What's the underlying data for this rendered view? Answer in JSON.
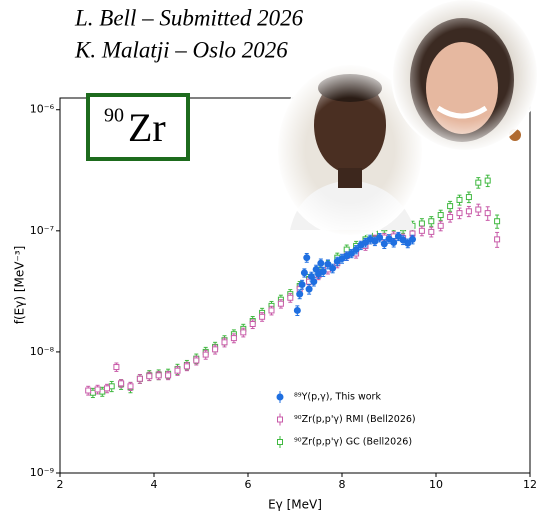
{
  "chart_data": {
    "type": "scatter",
    "header_lines": [
      "L. Bell – Submitted 2026",
      "K. Malatji – Oslo 2026"
    ],
    "label_box": {
      "mass": "90",
      "symbol": "Zr",
      "color": "#1d6b1d"
    },
    "x_label": "Eγ [MeV]",
    "y_label": "f(Eγ) [MeV⁻³]",
    "log_y": true,
    "xlim": [
      2,
      12
    ],
    "xticks": [
      2,
      4,
      6,
      8,
      10,
      12
    ],
    "ylim": [
      1e-09,
      1.25e-06
    ],
    "yticks": [
      {
        "value": 1e-09,
        "label": "10⁻⁹"
      },
      {
        "value": 1e-08,
        "label": "10⁻⁸"
      },
      {
        "value": 1e-07,
        "label": "10⁻⁷"
      },
      {
        "value": 1e-06,
        "label": "10⁻⁶"
      }
    ],
    "series": [
      {
        "name": "⁸⁹Y(p,γ), This work",
        "color": "#1f6fe0",
        "marker": "circle",
        "filled": true,
        "x": [
          7.05,
          7.1,
          7.15,
          7.2,
          7.25,
          7.3,
          7.35,
          7.4,
          7.45,
          7.5,
          7.55,
          7.6,
          7.7,
          7.8,
          7.9,
          8.0,
          8.1,
          8.2,
          8.3,
          8.4,
          8.5,
          8.6,
          8.7,
          8.8,
          8.9,
          9.0,
          9.1,
          9.2,
          9.3,
          9.4,
          9.5
        ],
        "values": [
          2.2e-08,
          3e-08,
          3.6e-08,
          4.5e-08,
          6e-08,
          3.3e-08,
          4.2e-08,
          3.8e-08,
          4.8e-08,
          4.4e-08,
          5.4e-08,
          4.6e-08,
          5.3e-08,
          4.9e-08,
          5.6e-08,
          5.9e-08,
          6.2e-08,
          6.5e-08,
          7e-08,
          7.6e-08,
          8e-08,
          8.5e-08,
          8.2e-08,
          8.8e-08,
          7.8e-08,
          8.6e-08,
          8e-08,
          9e-08,
          8.4e-08,
          7.9e-08,
          8.5e-08
        ],
        "errors": [
          2e-09,
          2.5e-09,
          3e-09,
          3.5e-09,
          5e-09,
          3e-09,
          3.5e-09,
          3e-09,
          4e-09,
          3.5e-09,
          4.5e-09,
          4e-09,
          4.5e-09,
          4e-09,
          4.5e-09,
          5e-09,
          5e-09,
          5e-09,
          5.5e-09,
          6e-09,
          6.5e-09,
          7e-09,
          6.5e-09,
          7e-09,
          6.5e-09,
          7e-09,
          6.5e-09,
          7e-09,
          7e-09,
          6.5e-09,
          7e-09
        ]
      },
      {
        "name": "⁹⁰Zr(p,p'γ) RMI (Bell2026)",
        "color": "#c85aa8",
        "marker": "square",
        "filled": false,
        "x": [
          2.6,
          2.8,
          3.0,
          3.2,
          3.3,
          3.5,
          3.7,
          3.9,
          4.1,
          4.3,
          4.5,
          4.7,
          4.9,
          5.1,
          5.3,
          5.5,
          5.7,
          5.9,
          6.1,
          6.3,
          6.5,
          6.7,
          6.9,
          7.1,
          7.3,
          7.5,
          7.7,
          7.9,
          8.1,
          8.3,
          8.5,
          8.7,
          8.9,
          9.1,
          9.3,
          9.5,
          9.7,
          9.9,
          10.1,
          10.3,
          10.5,
          10.7,
          10.9,
          11.1,
          11.3
        ],
        "values": [
          4.8e-09,
          4.9e-09,
          5e-09,
          7.5e-09,
          5.5e-09,
          5.2e-09,
          6e-09,
          6.3e-09,
          6.4e-09,
          6.4e-09,
          7e-09,
          7.6e-09,
          8.5e-09,
          9.5e-09,
          1.05e-08,
          1.2e-08,
          1.3e-08,
          1.45e-08,
          1.7e-08,
          1.95e-08,
          2.2e-08,
          2.5e-08,
          2.8e-08,
          3.3e-08,
          3.8e-08,
          4.3e-08,
          4.8e-08,
          5.4e-08,
          6.2e-08,
          6.5e-08,
          7.5e-08,
          8.5e-08,
          8.8e-08,
          9e-08,
          8.7e-08,
          9.5e-08,
          1e-07,
          9.8e-08,
          1.1e-07,
          1.3e-07,
          1.4e-07,
          1.45e-07,
          1.5e-07,
          1.4e-07,
          8.5e-08
        ],
        "errors": [
          4e-10,
          4e-10,
          4e-10,
          6e-10,
          4e-10,
          4e-10,
          5e-10,
          5e-10,
          5e-10,
          5e-10,
          6e-10,
          6e-10,
          7e-10,
          8e-10,
          9e-10,
          1e-09,
          1.1e-09,
          1.2e-09,
          1.4e-09,
          1.6e-09,
          1.8e-09,
          2e-09,
          2.3e-09,
          2.7e-09,
          3.1e-09,
          3.5e-09,
          4e-09,
          4.5e-09,
          5e-09,
          5.5e-09,
          6e-09,
          7e-09,
          7e-09,
          8e-09,
          7e-09,
          8e-09,
          9e-09,
          9e-09,
          1e-08,
          1.2e-08,
          1.4e-08,
          1.4e-08,
          1.6e-08,
          1.8e-08,
          1.2e-08
        ]
      },
      {
        "name": "⁹⁰Zr(p,p'γ) GC (Bell2026)",
        "color": "#3fb83f",
        "marker": "square",
        "filled": false,
        "x": [
          2.7,
          2.9,
          3.1,
          3.3,
          3.5,
          3.7,
          3.9,
          4.1,
          4.3,
          4.5,
          4.7,
          4.9,
          5.1,
          5.3,
          5.5,
          5.7,
          5.9,
          6.1,
          6.3,
          6.5,
          6.7,
          6.9,
          7.1,
          7.3,
          7.5,
          7.7,
          7.9,
          8.1,
          8.3,
          8.5,
          8.7,
          8.9,
          9.1,
          9.3,
          9.5,
          9.7,
          9.9,
          10.1,
          10.3,
          10.5,
          10.7,
          10.9,
          11.1,
          11.3
        ],
        "values": [
          4.6e-09,
          4.7e-09,
          5.2e-09,
          5.4e-09,
          5.1e-09,
          6e-09,
          6.4e-09,
          6.5e-09,
          6.6e-09,
          7.2e-09,
          7.8e-09,
          8.8e-09,
          1e-08,
          1.1e-08,
          1.25e-08,
          1.4e-08,
          1.55e-08,
          1.8e-08,
          2.1e-08,
          2.4e-08,
          2.7e-08,
          3e-08,
          3.5e-08,
          4e-08,
          4.6e-08,
          5.2e-08,
          6e-08,
          7e-08,
          7.5e-08,
          8.5e-08,
          9.5e-08,
          1.05e-07,
          1.1e-07,
          1.05e-07,
          1.1e-07,
          1.15e-07,
          1.2e-07,
          1.35e-07,
          1.6e-07,
          1.8e-07,
          1.9e-07,
          2.5e-07,
          2.6e-07,
          1.2e-07
        ],
        "errors": [
          4e-10,
          4e-10,
          5e-10,
          5e-10,
          5e-10,
          5e-10,
          6e-10,
          6e-10,
          6e-10,
          7e-10,
          7e-10,
          8e-10,
          9e-10,
          1e-09,
          1.1e-09,
          1.2e-09,
          1.4e-09,
          1.6e-09,
          1.9e-09,
          2.1e-09,
          2.4e-09,
          2.7e-09,
          3.1e-09,
          3.6e-09,
          4.1e-09,
          4.7e-09,
          5.4e-09,
          6.3e-09,
          6.8e-09,
          7.6e-09,
          8.5e-09,
          9.5e-09,
          1e-08,
          9.5e-09,
          1e-08,
          1.1e-08,
          1.1e-08,
          1.3e-08,
          1.5e-08,
          1.7e-08,
          1.9e-08,
          2.5e-08,
          2.8e-08,
          1.5e-08
        ]
      }
    ]
  }
}
